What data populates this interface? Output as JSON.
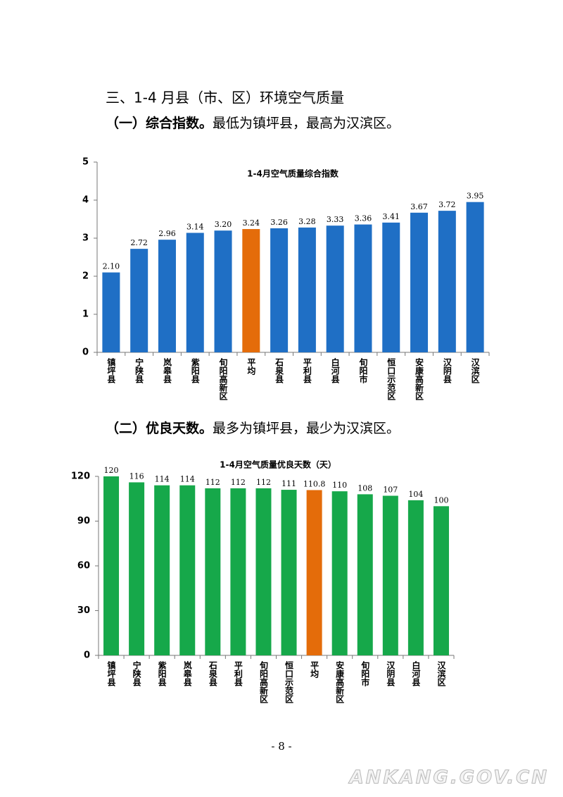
{
  "heading": "三、1-4 月县（市、区）环境空气质量",
  "section1": {
    "label": "（一）综合指数。",
    "text": "最低为镇坪县，最高为汉滨区。"
  },
  "section2": {
    "label": "（二）优良天数。",
    "text": "最多为镇坪县，最少为汉滨区。"
  },
  "page_number": "- 8 -",
  "watermark": "ANKANG.GOV.CN",
  "chart_data": [
    {
      "type": "bar",
      "title": "1-4月空气质量综合指数",
      "categories": [
        "镇坪县",
        "宁陕县",
        "岚皋县",
        "紫阳县",
        "旬阳高新区",
        "平均",
        "石泉县",
        "平利县",
        "白河县",
        "旬阳市",
        "恒口示范区",
        "安康高新区",
        "汉阴县",
        "汉滨区"
      ],
      "values": [
        2.1,
        2.72,
        2.96,
        3.14,
        3.2,
        3.24,
        3.26,
        3.28,
        3.33,
        3.36,
        3.41,
        3.67,
        3.72,
        3.95
      ],
      "value_labels": [
        "2.10",
        "2.72",
        "2.96",
        "3.14",
        "3.20",
        "3.24",
        "3.26",
        "3.28",
        "3.33",
        "3.36",
        "3.41",
        "3.67",
        "3.72",
        "3.95"
      ],
      "colors": [
        "#1f6fc5",
        "#1f6fc5",
        "#1f6fc5",
        "#1f6fc5",
        "#1f6fc5",
        "#e46c0a",
        "#1f6fc5",
        "#1f6fc5",
        "#1f6fc5",
        "#1f6fc5",
        "#1f6fc5",
        "#1f6fc5",
        "#1f6fc5",
        "#1f6fc5"
      ],
      "ylim": [
        0,
        5
      ],
      "yticks": [
        0,
        1,
        2,
        3,
        4,
        5
      ]
    },
    {
      "type": "bar",
      "title": "1-4月空气质量优良天数（天）",
      "categories": [
        "镇坪县",
        "宁陕县",
        "紫阳县",
        "岚皋县",
        "石泉县",
        "平利县",
        "旬阳高新区",
        "恒口示范区",
        "平均",
        "安康高新区",
        "旬阳市",
        "汉阴县",
        "白河县",
        "汉滨区"
      ],
      "values": [
        120,
        116,
        114,
        114,
        112,
        112,
        112,
        111,
        110.8,
        110,
        108,
        107,
        104,
        100
      ],
      "colors": [
        "#16a84a",
        "#16a84a",
        "#16a84a",
        "#16a84a",
        "#16a84a",
        "#16a84a",
        "#16a84a",
        "#16a84a",
        "#e46c0a",
        "#16a84a",
        "#16a84a",
        "#16a84a",
        "#16a84a",
        "#16a84a"
      ],
      "ylim": [
        0,
        120
      ],
      "yticks": [
        0,
        30,
        60,
        90,
        120
      ]
    }
  ]
}
